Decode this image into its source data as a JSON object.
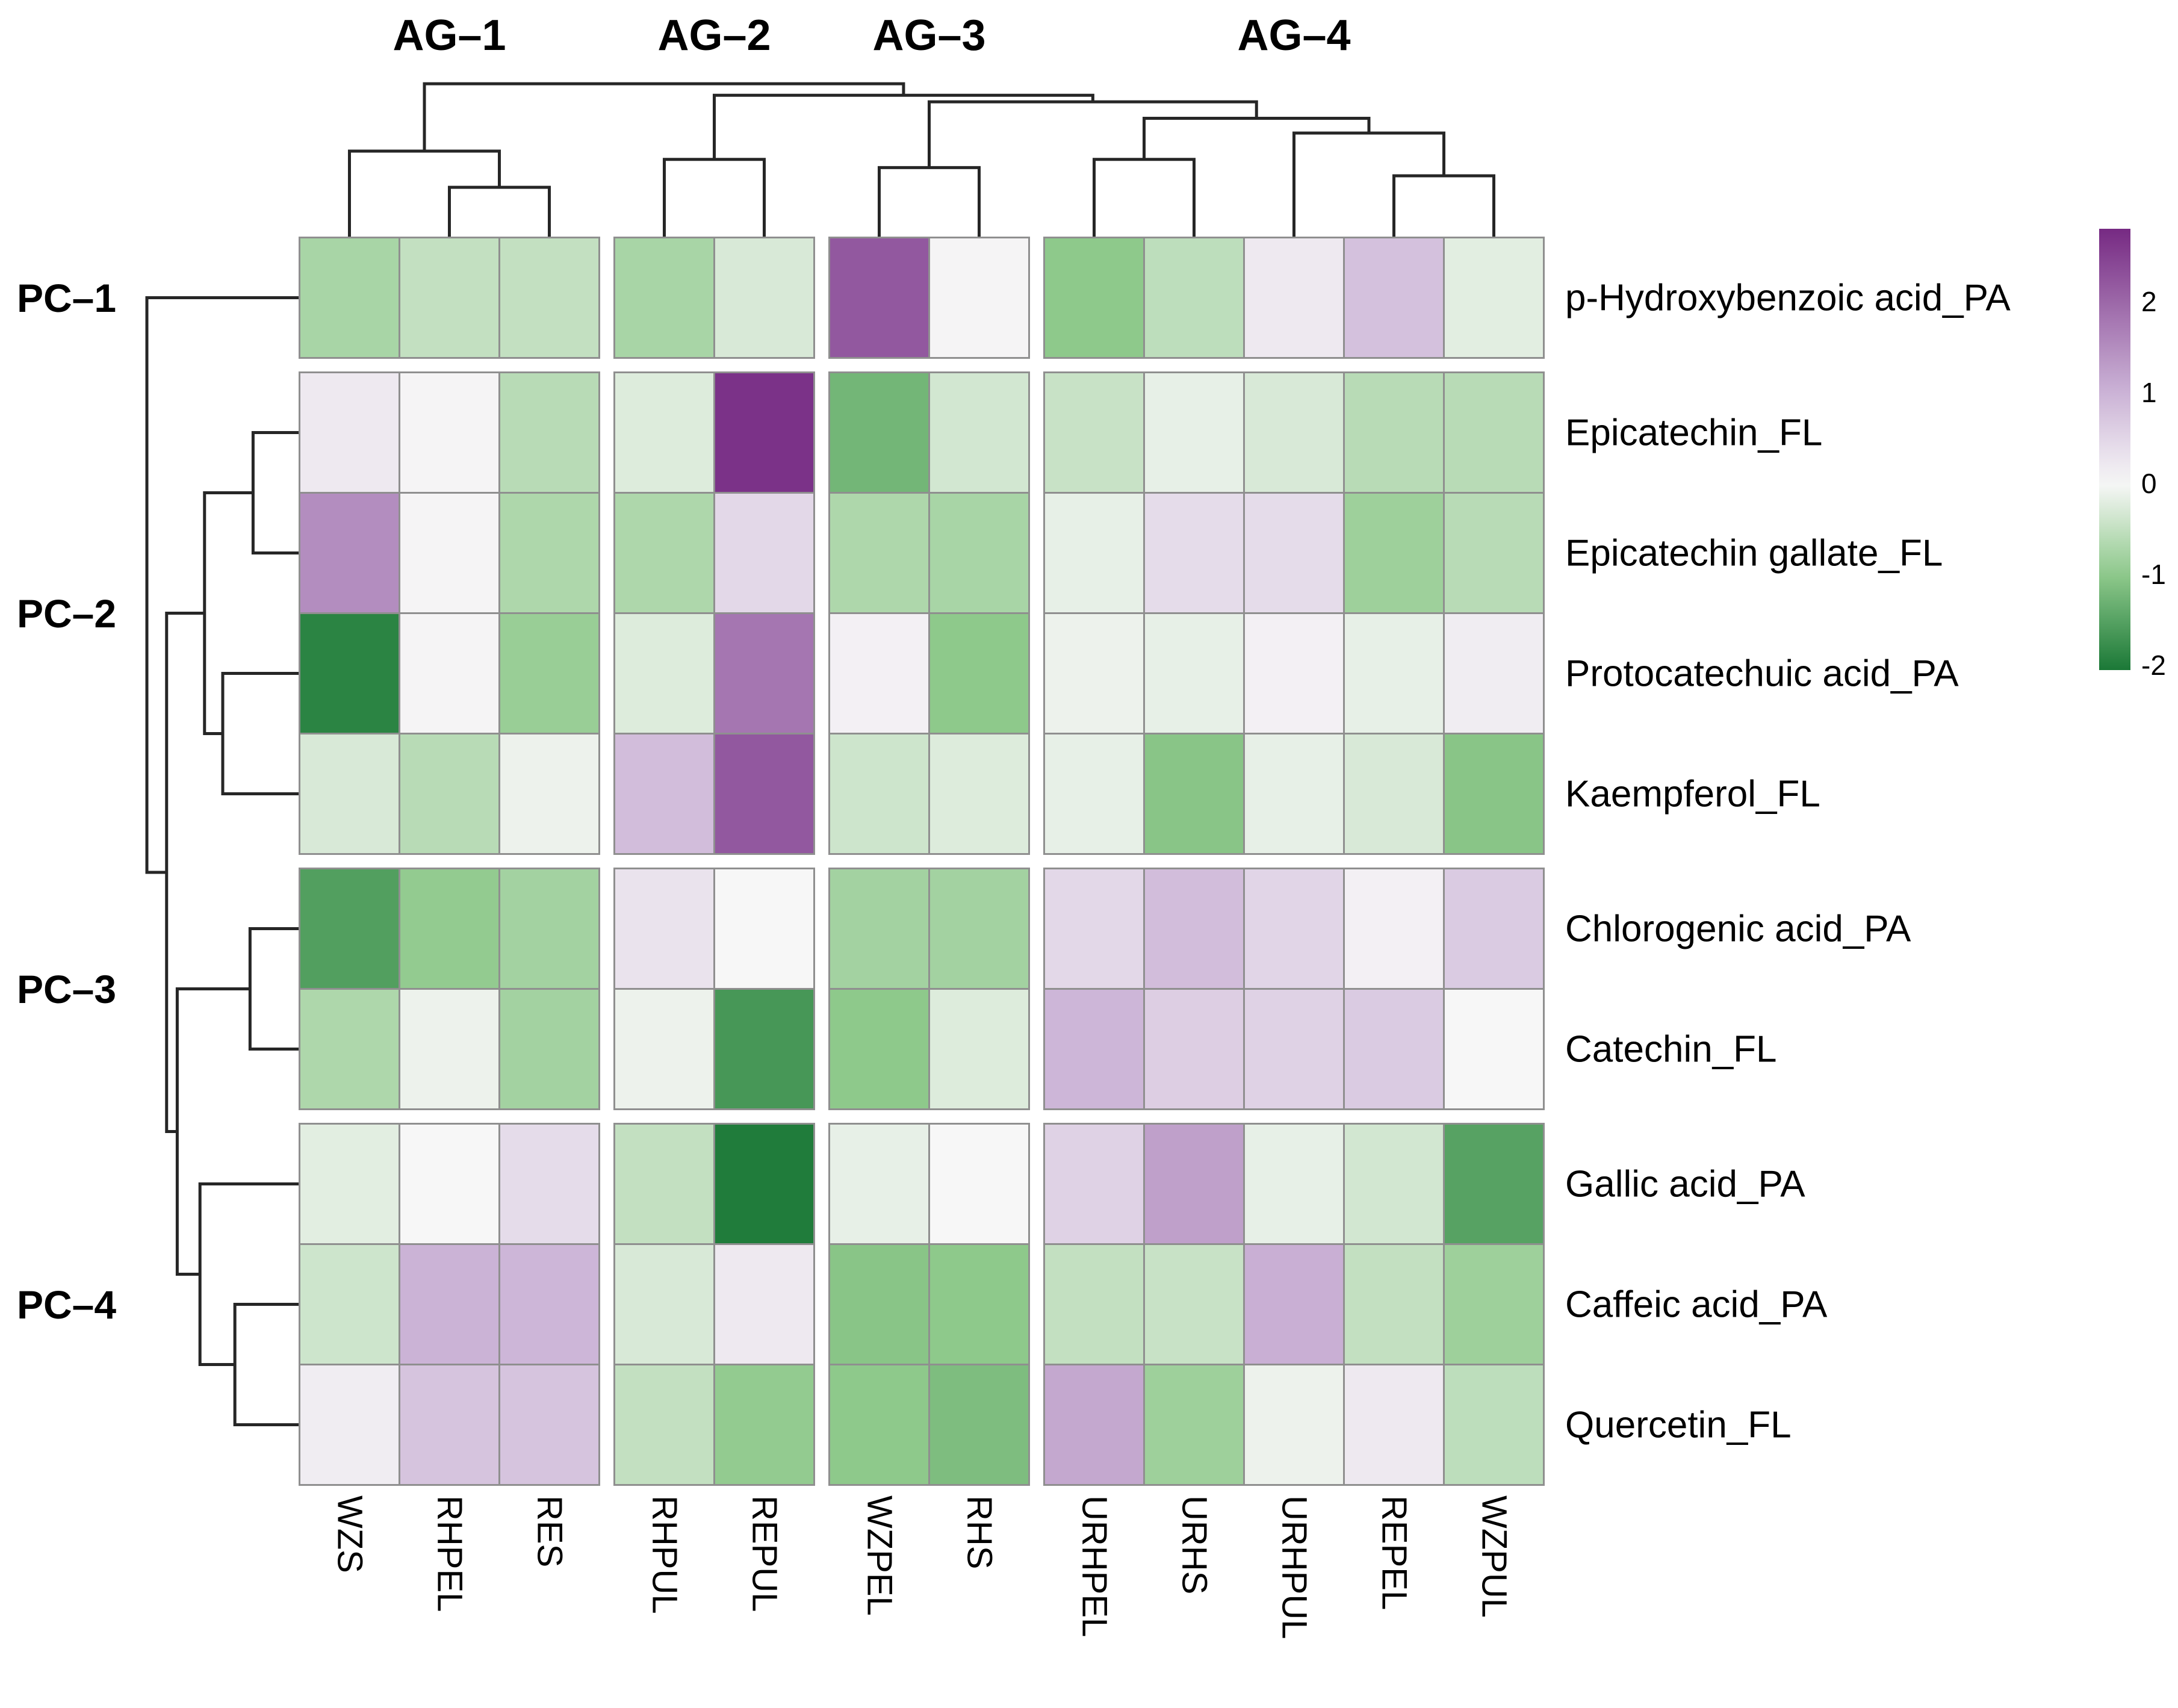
{
  "chart_data": {
    "type": "heatmap",
    "description": "Clustered heatmap of phenolic compounds (rows) across samples (columns) with row and column dendrograms and a purple-white-green color scale",
    "columns": [
      "WZS",
      "RHPEL",
      "RES",
      "RHPUL",
      "REPUL",
      "WZPEL",
      "RHS",
      "URHPEL",
      "URHS",
      "URHPUL",
      "REPEL",
      "WZPUL"
    ],
    "rows": [
      "p-Hydroxybenzoic acid_PA",
      "Epicatechin_FL",
      "Epicatechin gallate_FL",
      "Protocatechuic acid_PA",
      "Kaempferol_FL",
      "Chlorogenic acid_PA",
      "Catechin_FL",
      "Gallic acid_PA",
      "Caffeic acid_PA",
      "Quercetin_FL"
    ],
    "col_groups": [
      {
        "label": "AG–1",
        "size": 3
      },
      {
        "label": "AG–2",
        "size": 2
      },
      {
        "label": "AG–3",
        "size": 2
      },
      {
        "label": "AG–4",
        "size": 5
      }
    ],
    "row_groups": [
      {
        "label": "PC–1",
        "size": 1
      },
      {
        "label": "PC–2",
        "size": 4
      },
      {
        "label": "PC–3",
        "size": 2
      },
      {
        "label": "PC–4",
        "size": 3
      }
    ],
    "values": [
      [
        -0.75,
        -0.5,
        -0.5,
        -0.75,
        -0.3,
        2.2,
        0.05,
        -1.0,
        -0.55,
        0.2,
        0.8,
        -0.2
      ],
      [
        0.2,
        0.05,
        -0.6,
        -0.25,
        2.7,
        -1.25,
        -0.35,
        -0.45,
        -0.15,
        -0.3,
        -0.6,
        -0.6
      ],
      [
        1.5,
        0.05,
        -0.7,
        -0.7,
        0.45,
        -0.7,
        -0.75,
        -0.15,
        0.4,
        0.4,
        -0.85,
        -0.6
      ],
      [
        -1.9,
        0.05,
        -0.9,
        -0.25,
        1.8,
        0.1,
        -1.0,
        -0.1,
        -0.15,
        0.1,
        -0.15,
        0.15
      ],
      [
        -0.3,
        -0.6,
        -0.1,
        0.85,
        2.2,
        -0.4,
        -0.25,
        -0.15,
        -1.05,
        -0.15,
        -0.3,
        -1.05
      ],
      [
        -1.55,
        -0.95,
        -0.8,
        0.3,
        0.0,
        -0.8,
        -0.8,
        0.45,
        0.85,
        0.5,
        0.1,
        0.65
      ],
      [
        -0.7,
        -0.1,
        -0.8,
        -0.1,
        -1.65,
        -1.0,
        -0.25,
        0.95,
        0.6,
        0.55,
        0.65,
        0.0
      ],
      [
        -0.2,
        0.0,
        0.4,
        -0.5,
        -2.0,
        -0.15,
        0.0,
        0.55,
        1.25,
        -0.15,
        -0.35,
        -1.5
      ],
      [
        -0.4,
        1.0,
        0.95,
        -0.3,
        0.2,
        -1.05,
        -1.0,
        -0.5,
        -0.45,
        1.05,
        -0.5,
        -0.85
      ],
      [
        0.15,
        0.75,
        0.75,
        -0.5,
        -0.95,
        -1.0,
        -1.15,
        1.15,
        -0.85,
        -0.1,
        0.2,
        -0.55
      ]
    ],
    "colorbar": {
      "ticks": [
        "2",
        "1",
        "0",
        "-1",
        "-2"
      ],
      "tick_values": [
        2,
        1,
        0,
        -1,
        -2
      ],
      "vmax": 2.8,
      "vmin": -2.05,
      "positive_anchors": [
        [
          0,
          "#f7f7f7"
        ],
        [
          1,
          "#cbb3d6"
        ],
        [
          2.8,
          "#762a83"
        ]
      ],
      "negative_anchors": [
        [
          0,
          "#f7f7f7"
        ],
        [
          1,
          "#8ec98b"
        ],
        [
          2.05,
          "#1b7837"
        ]
      ],
      "legend_position": "right"
    },
    "col_dendrogram": {
      "merges": [
        [
          1,
          2,
          0.3
        ],
        [
          0,
          12,
          0.52
        ],
        [
          3,
          4,
          0.47
        ],
        [
          5,
          6,
          0.42
        ],
        [
          7,
          8,
          0.47
        ],
        [
          10,
          11,
          0.37
        ],
        [
          9,
          17,
          0.63
        ],
        [
          16,
          18,
          0.72
        ],
        [
          15,
          19,
          0.82
        ],
        [
          14,
          20,
          0.86
        ],
        [
          13,
          21,
          0.93
        ]
      ]
    },
    "row_dendrogram": {
      "merges": [
        [
          1,
          2,
          0.3
        ],
        [
          3,
          4,
          0.5
        ],
        [
          10,
          11,
          0.62
        ],
        [
          5,
          6,
          0.32
        ],
        [
          8,
          9,
          0.42
        ],
        [
          7,
          14,
          0.65
        ],
        [
          13,
          15,
          0.8
        ],
        [
          12,
          16,
          0.87
        ],
        [
          0,
          17,
          1.0
        ]
      ]
    },
    "grid_line_color": "#8f8f8f",
    "dendrogram_color": "#262626"
  }
}
